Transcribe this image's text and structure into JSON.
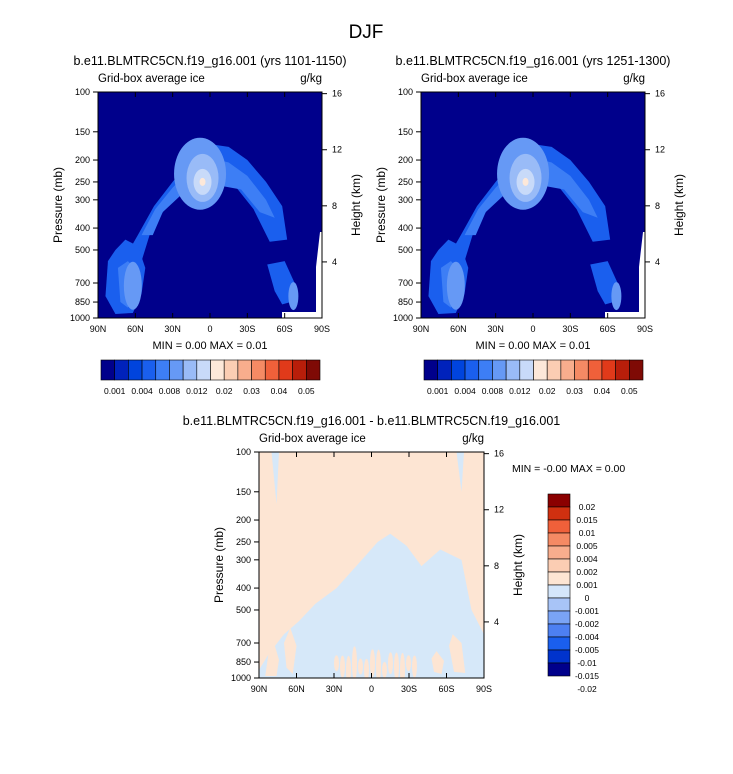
{
  "page_title": "DJF",
  "colors": {
    "pos_scale": [
      "#00008b",
      "#0022bb",
      "#0044dd",
      "#1a5fee",
      "#3d7ef5",
      "#6699f5",
      "#99bbf7",
      "#c8daf9",
      "#fde8d9",
      "#fbcdb3",
      "#f8ad8d",
      "#f58a64",
      "#f0603a",
      "#e03a1a",
      "#b81e0a",
      "#7f0a05"
    ],
    "diff_scale": [
      "#00008b",
      "#0033cc",
      "#1a5fee",
      "#4d80f2",
      "#7aa4f5",
      "#a8c4f7",
      "#d4e6fb",
      "#fde5d3",
      "#fbcdb3",
      "#f8ad8d",
      "#f58a64",
      "#f0603a",
      "#d03010",
      "#8b0000"
    ],
    "background": "#00008b",
    "diff_background": "#d6e8f9",
    "diff_positive": "#fde5d3"
  },
  "chart_data": [
    {
      "type": "heatmap",
      "title": "b.e11.BLMTRC5CN.f19_g16.001 (yrs 1101-1150)",
      "left_label": "Grid-box average ice",
      "right_label": "g/kg",
      "ylabel": "Pressure (mb)",
      "ylabel_right": "Height (km)",
      "x_ticks": [
        "90N",
        "60N",
        "30N",
        "0",
        "30S",
        "60S",
        "90S"
      ],
      "xlim": [
        90,
        -90
      ],
      "y_ticks": [
        "100",
        "150",
        "200",
        "250",
        "300",
        "400",
        "500",
        "700",
        "850",
        "1000"
      ],
      "ylim": [
        100,
        1000
      ],
      "y_ticks_right": [
        "16",
        "12",
        "8",
        "4"
      ],
      "stats": "MIN =   0.00  MAX =  0.01",
      "colorbar_labels": [
        "0.001",
        "0.004",
        "0.008",
        "0.012",
        "0.02",
        "0.03",
        "0.04",
        "0.05"
      ]
    },
    {
      "type": "heatmap",
      "title": "b.e11.BLMTRC5CN.f19_g16.001 (yrs 1251-1300)",
      "left_label": "Grid-box average ice",
      "right_label": "g/kg",
      "ylabel": "Pressure (mb)",
      "ylabel_right": "Height (km)",
      "x_ticks": [
        "90N",
        "60N",
        "30N",
        "0",
        "30S",
        "60S",
        "90S"
      ],
      "xlim": [
        90,
        -90
      ],
      "y_ticks": [
        "100",
        "150",
        "200",
        "250",
        "300",
        "400",
        "500",
        "700",
        "850",
        "1000"
      ],
      "ylim": [
        100,
        1000
      ],
      "y_ticks_right": [
        "16",
        "12",
        "8",
        "4"
      ],
      "stats": "MIN =   0.00  MAX =  0.01",
      "colorbar_labels": [
        "0.001",
        "0.004",
        "0.008",
        "0.012",
        "0.02",
        "0.03",
        "0.04",
        "0.05"
      ]
    },
    {
      "type": "heatmap",
      "title": "b.e11.BLMTRC5CN.f19_g16.001 - b.e11.BLMTRC5CN.f19_g16.001",
      "left_label": "Grid-box average ice",
      "right_label": "g/kg",
      "ylabel": "Pressure (mb)",
      "ylabel_right": "Height (km)",
      "x_ticks": [
        "90N",
        "60N",
        "30N",
        "0",
        "30S",
        "60S",
        "90S"
      ],
      "xlim": [
        90,
        -90
      ],
      "y_ticks": [
        "100",
        "150",
        "200",
        "250",
        "300",
        "400",
        "500",
        "700",
        "850",
        "1000"
      ],
      "ylim": [
        100,
        1000
      ],
      "y_ticks_right": [
        "16",
        "12",
        "8",
        "4"
      ],
      "stats": "MIN =  -0.00  MAX =   0.00",
      "colorbar_labels": [
        "0.02",
        "0.015",
        "0.01",
        "0.005",
        "0.004",
        "0.002",
        "0.001",
        "0",
        "-0.001",
        "-0.002",
        "-0.004",
        "-0.005",
        "-0.01",
        "-0.015",
        "-0.02"
      ]
    }
  ]
}
